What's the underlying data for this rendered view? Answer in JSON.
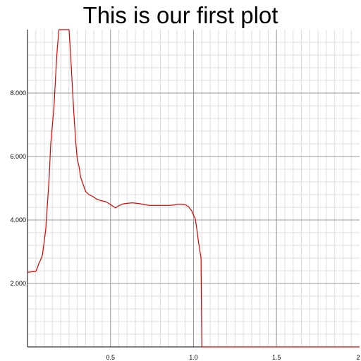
{
  "chart_data": {
    "type": "line",
    "title": "This is our first plot",
    "xlabel": "",
    "ylabel": "",
    "xlim": [
      0,
      2
    ],
    "ylim": [
      0,
      10
    ],
    "x_ticks": [
      {
        "value": 0.5,
        "label": "0.5"
      },
      {
        "value": 1.0,
        "label": "1.0"
      },
      {
        "value": 1.5,
        "label": "1.5"
      },
      {
        "value": 2.0,
        "label": "2"
      }
    ],
    "y_ticks": [
      {
        "value": 2,
        "label": "2.000"
      },
      {
        "value": 4,
        "label": "4.000"
      },
      {
        "value": 6,
        "label": "6.000"
      },
      {
        "value": 8,
        "label": "8.000"
      }
    ],
    "grid": true,
    "minor_grid": true,
    "series": [
      {
        "color": "#dd0000",
        "x": [
          0,
          0.05,
          0.06,
          0.07,
          0.08,
          0.09,
          0.1,
          0.11,
          0.12,
          0.13,
          0.14,
          0.15,
          0.16,
          0.17,
          0.18,
          0.19,
          0.2,
          0.21,
          0.22,
          0.23,
          0.24,
          0.25,
          0.26,
          0.27,
          0.28,
          0.29,
          0.3,
          0.31,
          0.32,
          0.33,
          0.34,
          0.35,
          0.37,
          0.39,
          0.41,
          0.43,
          0.45,
          0.47,
          0.49,
          0.51,
          0.53,
          0.55,
          0.57,
          0.59,
          0.61,
          0.63,
          0.65,
          0.67,
          0.69,
          0.71,
          0.73,
          0.75,
          0.8,
          0.85,
          0.88,
          0.9,
          0.92,
          0.95,
          0.97,
          0.99,
          1.0,
          1.01,
          1.02,
          1.03,
          1.045,
          1.05,
          1.1,
          1.5,
          2.0
        ],
        "y": [
          2.35,
          2.38,
          2.5,
          2.65,
          2.75,
          2.9,
          3.3,
          3.7,
          4.5,
          5.3,
          6.4,
          7.0,
          7.6,
          8.6,
          9.45,
          10.0,
          10.0,
          10.0,
          10.0,
          10.0,
          10.0,
          10.0,
          9.2,
          8.2,
          7.3,
          6.5,
          5.9,
          5.7,
          5.35,
          5.2,
          5.05,
          4.9,
          4.8,
          4.75,
          4.68,
          4.63,
          4.6,
          4.58,
          4.52,
          4.45,
          4.38,
          4.45,
          4.5,
          4.52,
          4.53,
          4.54,
          4.53,
          4.52,
          4.5,
          4.48,
          4.46,
          4.46,
          4.46,
          4.46,
          4.47,
          4.49,
          4.5,
          4.48,
          4.42,
          4.28,
          4.15,
          4.05,
          3.7,
          3.3,
          2.8,
          0.0,
          0.0,
          0.0,
          0.0
        ]
      }
    ]
  }
}
